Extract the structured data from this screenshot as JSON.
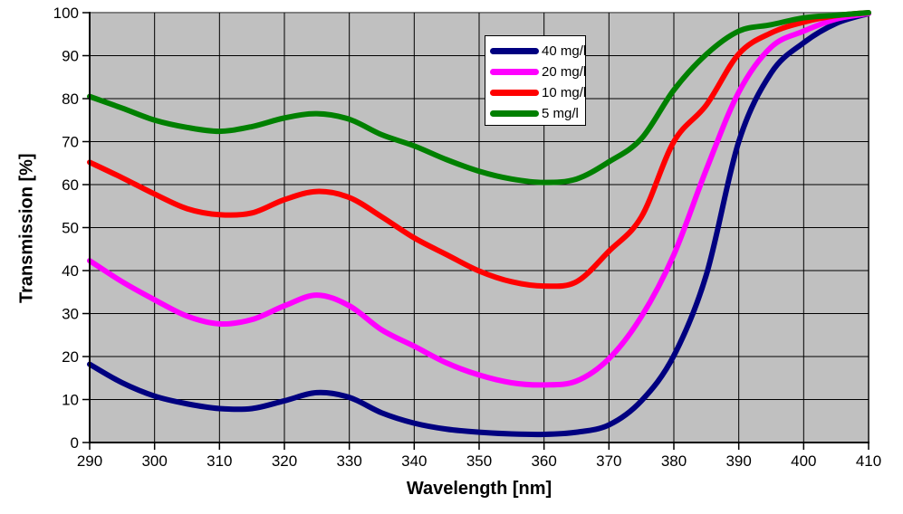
{
  "chart_data": {
    "type": "line",
    "title": "",
    "xlabel": "Wavelength [nm]",
    "ylabel": "Transmission [%]",
    "xlim": [
      290,
      410
    ],
    "ylim": [
      0,
      100
    ],
    "x_ticks": [
      290,
      300,
      310,
      320,
      330,
      340,
      350,
      360,
      370,
      380,
      390,
      400,
      410
    ],
    "y_ticks": [
      0,
      10,
      20,
      30,
      40,
      50,
      60,
      70,
      80,
      90,
      100
    ],
    "grid": "both",
    "legend_position": "top-center-inside",
    "plot_bg_color": "#C0C0C0",
    "plot_border_color": "#808080",
    "gridline_color": "#000000",
    "axis_color": "#000000",
    "x": [
      290,
      295,
      300,
      305,
      310,
      315,
      320,
      325,
      330,
      335,
      340,
      345,
      350,
      355,
      360,
      365,
      370,
      375,
      380,
      385,
      390,
      395,
      400,
      405,
      410
    ],
    "series": [
      {
        "name": "40 mg/l",
        "color": "#000080",
        "values": [
          18.2,
          13.9,
          10.8,
          9.0,
          7.9,
          7.9,
          9.7,
          11.6,
          10.5,
          6.9,
          4.5,
          3.1,
          2.4,
          2.0,
          1.9,
          2.4,
          4.1,
          9.7,
          20.2,
          39.0,
          70.0,
          86.0,
          93.0,
          97.5,
          99.8
        ]
      },
      {
        "name": "20 mg/l",
        "color": "#FF00FF",
        "values": [
          42.3,
          37.4,
          33.2,
          29.4,
          27.6,
          28.6,
          31.8,
          34.3,
          31.8,
          26.2,
          22.4,
          18.5,
          15.7,
          13.9,
          13.4,
          14.3,
          19.5,
          29.3,
          43.7,
          63.5,
          81.5,
          92.0,
          95.7,
          98.5,
          99.8
        ]
      },
      {
        "name": "10 mg/l",
        "color": "#FF0000",
        "values": [
          65.2,
          61.6,
          57.8,
          54.4,
          53.0,
          53.4,
          56.5,
          58.4,
          57.0,
          52.5,
          47.6,
          43.7,
          39.9,
          37.4,
          36.4,
          37.4,
          44.5,
          52.5,
          70.0,
          78.5,
          90.4,
          95.3,
          97.8,
          99.3,
          100.0
        ]
      },
      {
        "name": "5 mg/l",
        "color": "#008000",
        "values": [
          80.5,
          77.8,
          75.0,
          73.3,
          72.4,
          73.5,
          75.5,
          76.5,
          75.2,
          71.6,
          69.0,
          65.8,
          63.1,
          61.3,
          60.5,
          61.3,
          65.3,
          70.7,
          82.0,
          90.3,
          95.7,
          97.2,
          98.8,
          99.4,
          100.0
        ]
      }
    ]
  }
}
